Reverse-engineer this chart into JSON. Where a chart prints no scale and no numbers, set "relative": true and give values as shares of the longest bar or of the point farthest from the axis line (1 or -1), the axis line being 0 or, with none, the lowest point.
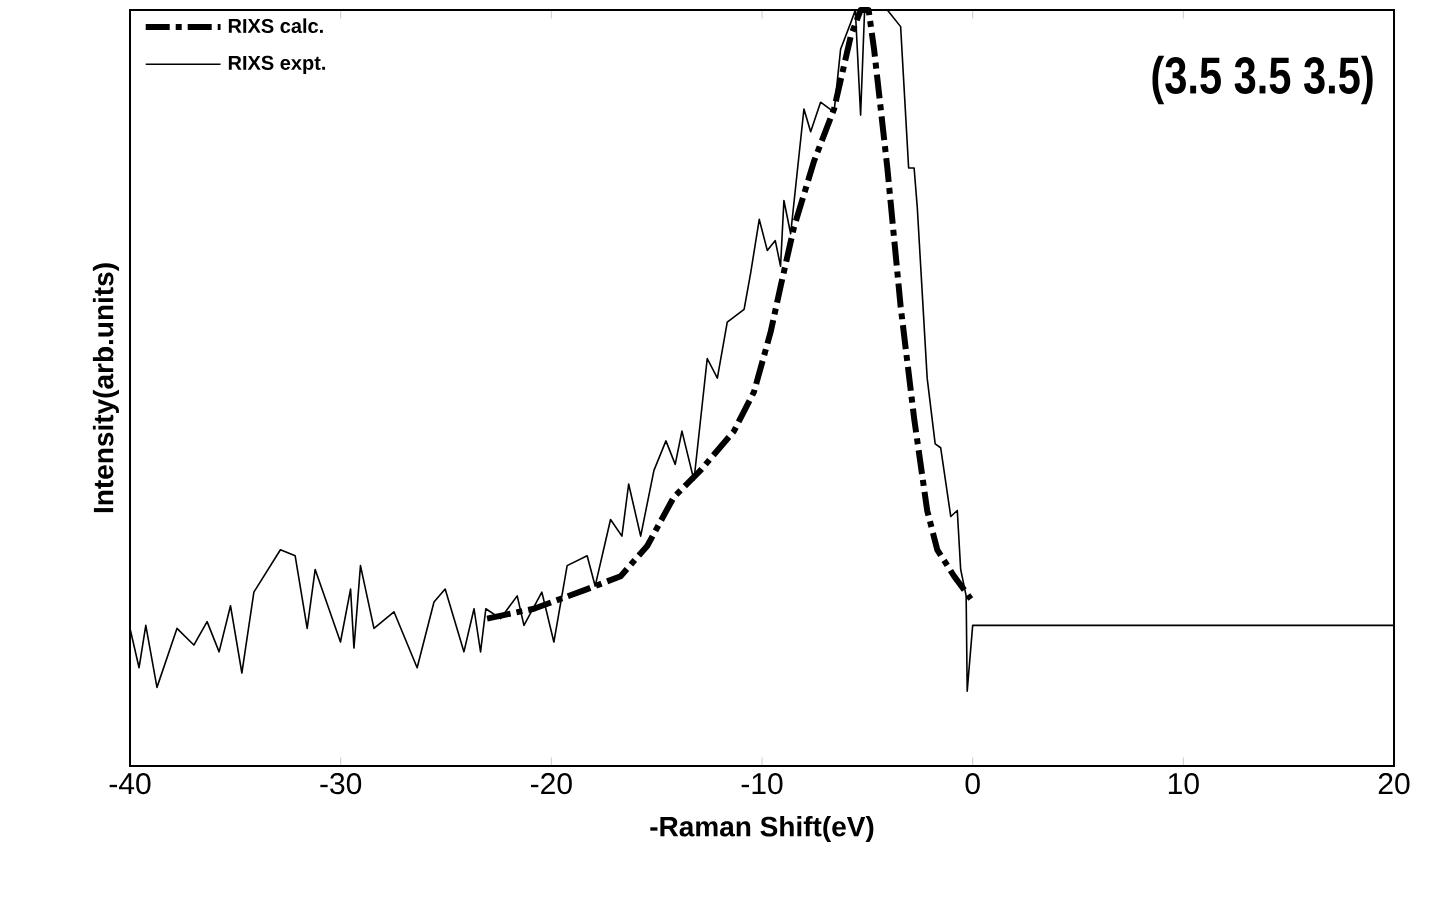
{
  "chart_data": {
    "type": "line",
    "xlabel": "-Raman Shift(eV)",
    "ylabel": "Intensity(arb.units)",
    "annotations": [
      "(3.5 3.5 3.5)"
    ],
    "relative": true,
    "xlim": [
      -40,
      20
    ],
    "xticks": [
      -40,
      -30,
      -20,
      -10,
      0,
      10,
      20
    ],
    "legend": "top left",
    "series": [
      {
        "name": "RIXS calc.",
        "color": "#000000",
        "line_style": "dashdot",
        "x": [
          -23.05,
          -20.83,
          -18.3,
          -16.71,
          -15.45,
          -14.18,
          -12.92,
          -11.33,
          -10.38,
          -9.59,
          -9.12,
          -8.48,
          -7.53,
          -6.58,
          -5.79,
          -5.32,
          -4.94,
          -4.68,
          -4.05,
          -3.42,
          -2.78,
          -2.16,
          -1.68,
          -0.88,
          -0.09
        ],
        "values": [
          0.195,
          0.208,
          0.234,
          0.251,
          0.291,
          0.356,
          0.391,
          0.443,
          0.495,
          0.574,
          0.634,
          0.713,
          0.8,
          0.869,
          0.965,
          1.0,
          1.0,
          0.948,
          0.791,
          0.608,
          0.46,
          0.338,
          0.286,
          0.251,
          0.221
        ]
      },
      {
        "name": "RIXS expt.",
        "color": "#000000",
        "line_style": "solid",
        "x": [
          -40.0,
          -39.57,
          -39.25,
          -38.72,
          -37.77,
          -36.97,
          -36.34,
          -35.77,
          -35.23,
          -34.69,
          -34.12,
          -32.86,
          -32.16,
          -31.59,
          -31.21,
          -30.01,
          -29.53,
          -29.37,
          -29.06,
          -28.42,
          -27.47,
          -26.37,
          -25.57,
          -25.04,
          -24.15,
          -23.67,
          -23.36,
          -23.11,
          -22.41,
          -21.62,
          -21.3,
          -20.45,
          -19.88,
          -19.25,
          -18.3,
          -17.92,
          -17.19,
          -16.65,
          -16.33,
          -15.76,
          -15.13,
          -14.56,
          -14.12,
          -13.8,
          -13.23,
          -12.6,
          -12.12,
          -11.65,
          -10.85,
          -10.54,
          -10.13,
          -9.75,
          -9.37,
          -9.12,
          -8.96,
          -8.64,
          -8.01,
          -7.69,
          -7.22,
          -6.58,
          -6.27,
          -5.79,
          -5.57,
          -5.32,
          -5.13,
          -4.05,
          -3.42,
          -3.04,
          -2.78,
          -2.63,
          -2.16,
          -1.78,
          -1.52,
          -1.04,
          -0.73,
          -0.57,
          -0.31,
          -0.26,
          0.0,
          20.0
        ],
        "values": [
          0.182,
          0.13,
          0.186,
          0.104,
          0.182,
          0.16,
          0.191,
          0.151,
          0.212,
          0.123,
          0.23,
          0.286,
          0.278,
          0.182,
          0.26,
          0.164,
          0.234,
          0.156,
          0.265,
          0.182,
          0.204,
          0.13,
          0.217,
          0.234,
          0.151,
          0.208,
          0.151,
          0.208,
          0.195,
          0.225,
          0.186,
          0.23,
          0.164,
          0.265,
          0.278,
          0.238,
          0.326,
          0.304,
          0.373,
          0.304,
          0.391,
          0.43,
          0.399,
          0.443,
          0.378,
          0.539,
          0.513,
          0.587,
          0.604,
          0.652,
          0.723,
          0.682,
          0.695,
          0.661,
          0.748,
          0.704,
          0.869,
          0.839,
          0.878,
          0.865,
          0.948,
          0.983,
          1.0,
          0.861,
          1.0,
          1.0,
          0.978,
          0.791,
          0.791,
          0.739,
          0.513,
          0.426,
          0.421,
          0.33,
          0.338,
          0.26,
          0.225,
          0.099,
          0.186,
          0.186
        ]
      }
    ]
  }
}
